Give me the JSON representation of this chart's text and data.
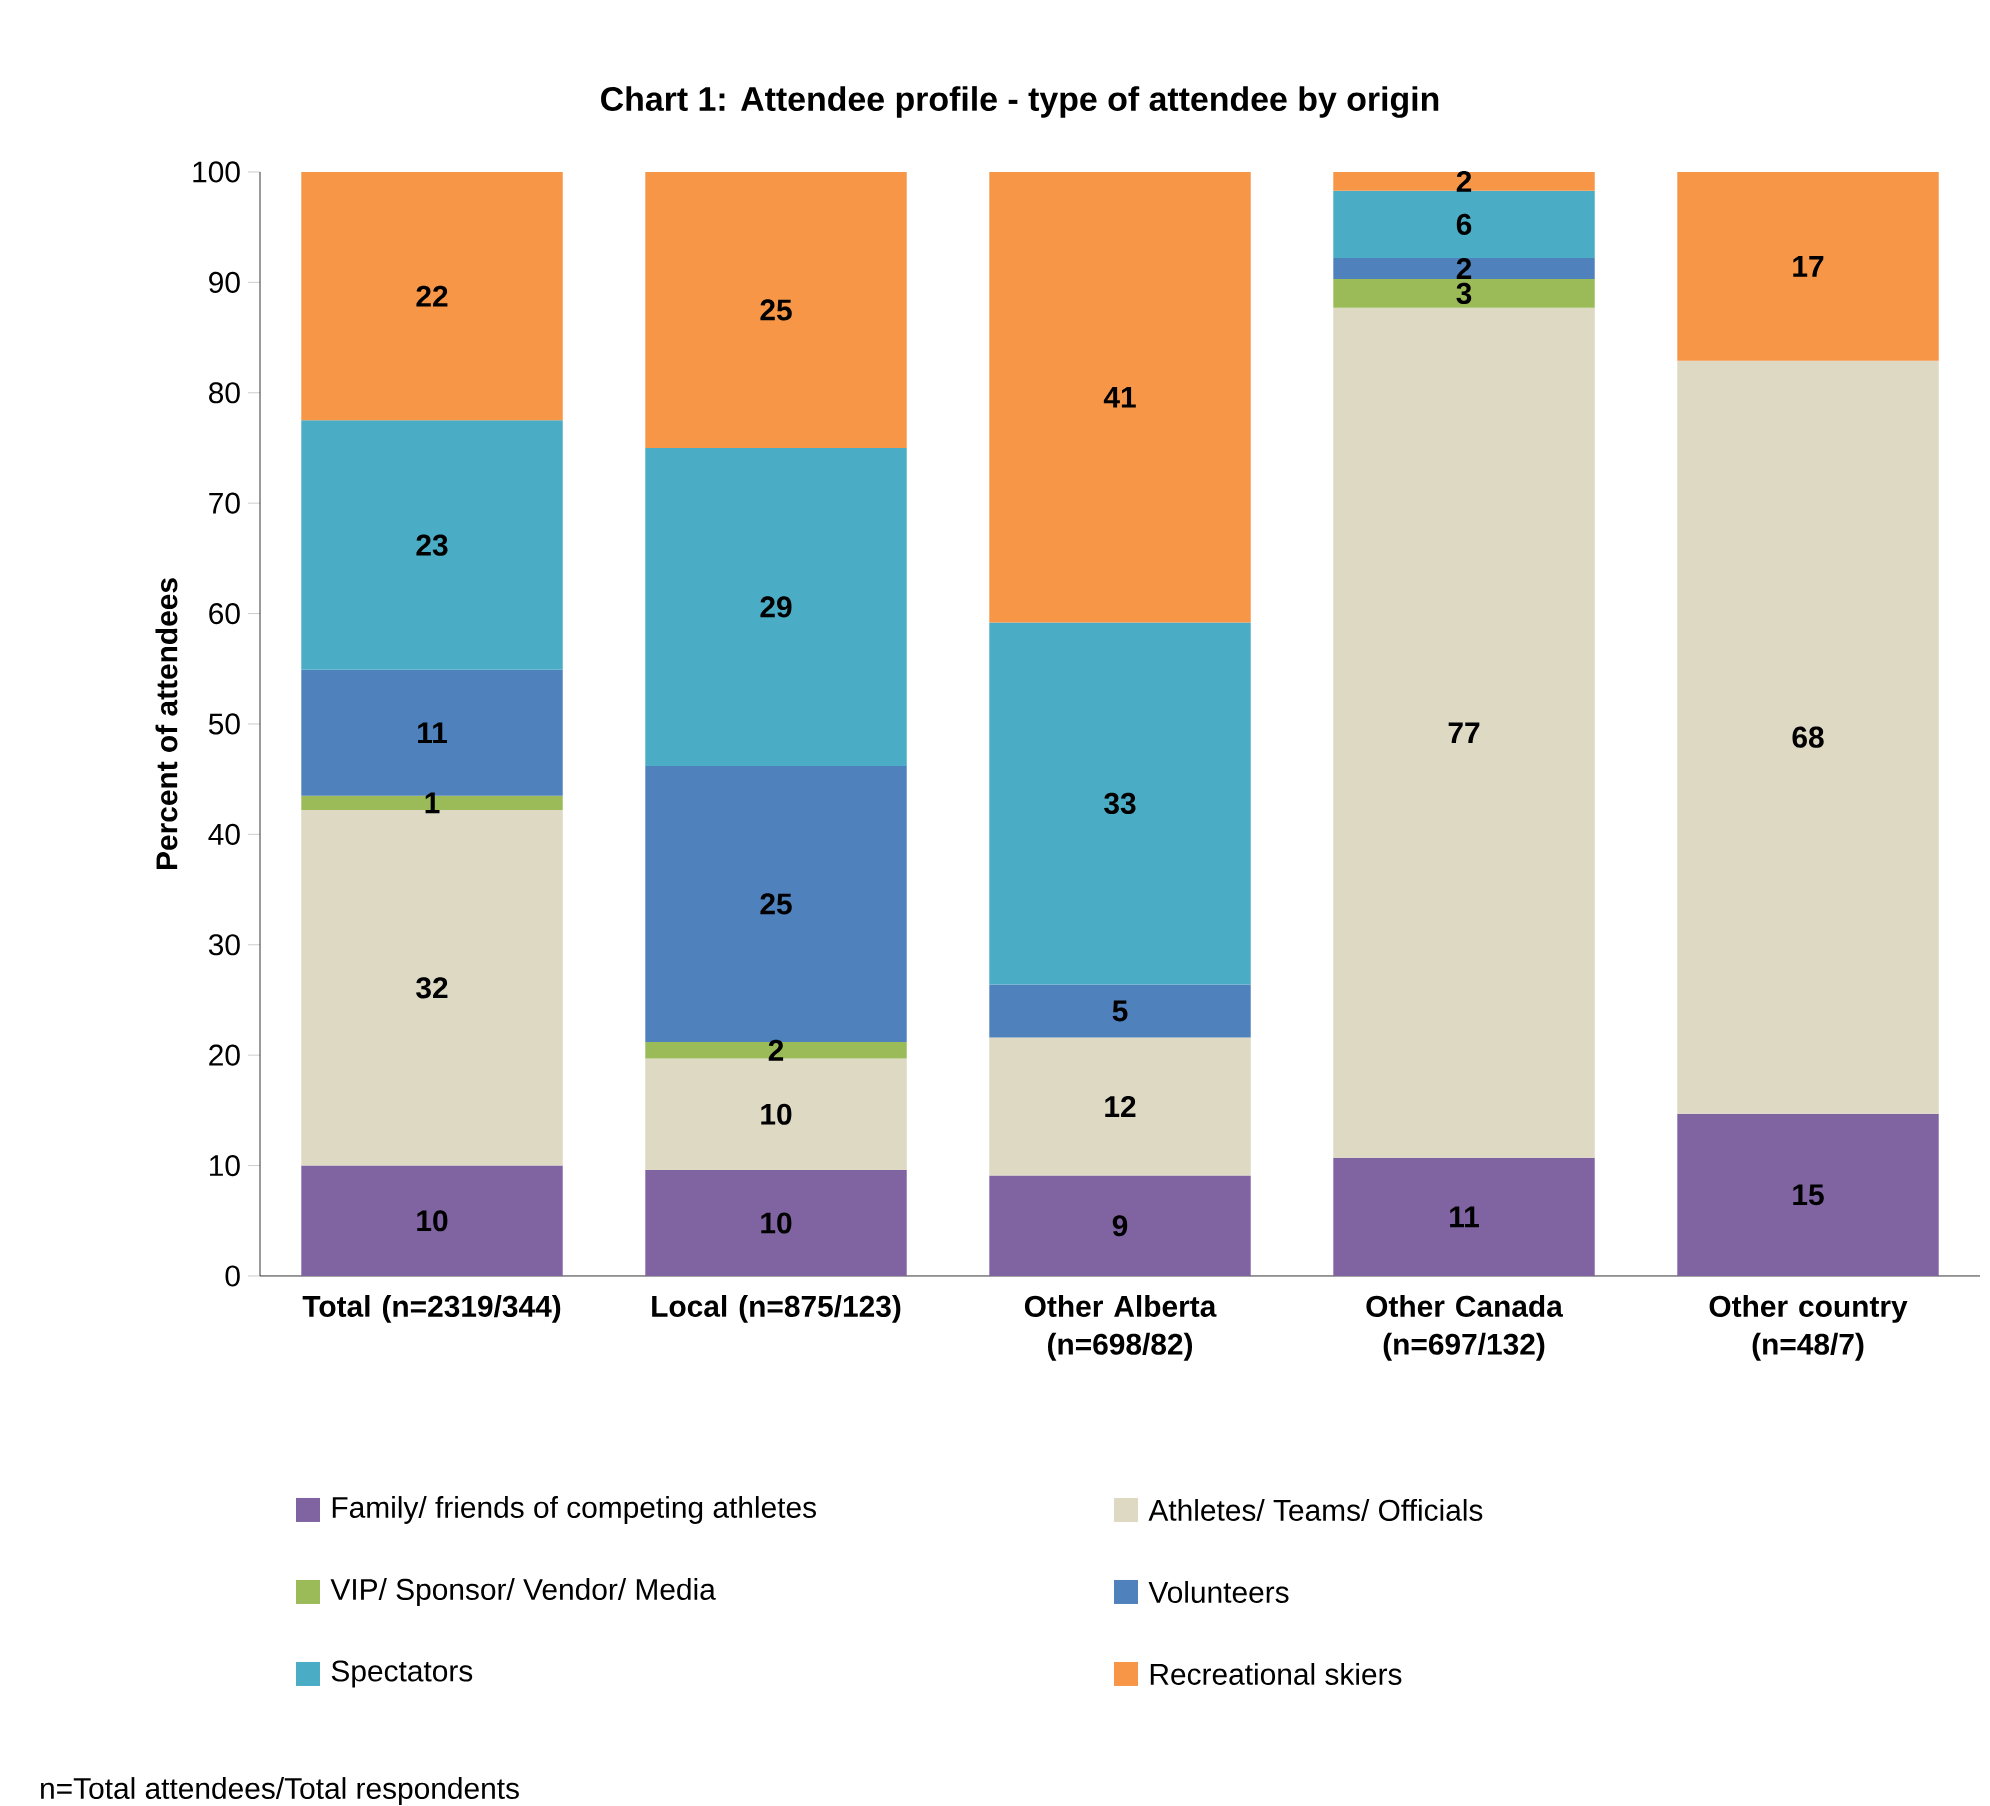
{
  "chart_data": {
    "type": "bar",
    "stacked": true,
    "title": "Chart 1: Attendee profile - type of attendee by origin",
    "ylabel": "Percent of attendees",
    "categories": [
      "Total (n=2319/344)",
      "Local (n=875/123)",
      "Other Alberta (n=698/82)",
      "Other Canada (n=697/132)",
      "Other country (n=48/7)"
    ],
    "series": [
      {
        "name": "Family/ friends of competing athletes",
        "color": "#8064a2",
        "values": [
          10.0,
          9.6,
          9.1,
          10.7,
          14.7
        ],
        "value_labels": [
          "10",
          "10",
          "9",
          "11",
          "15"
        ]
      },
      {
        "name": "Athletes/ Teams/ Officials",
        "color": "#ddd9c3",
        "values": [
          32.2,
          10.1,
          12.5,
          77.0,
          68.2
        ],
        "value_labels": [
          "32",
          "10",
          "12",
          "77",
          "68"
        ]
      },
      {
        "name": "VIP/ Sponsor/ Vendor/ Media",
        "color": "#9bbb59",
        "values": [
          1.3,
          1.5,
          null,
          2.6,
          null
        ],
        "value_labels": [
          "1",
          "2",
          null,
          "3",
          null
        ]
      },
      {
        "name": "Volunteers",
        "color": "#4f81bd",
        "values": [
          11.4,
          25.0,
          4.8,
          1.9,
          null
        ],
        "value_labels": [
          "11",
          "25",
          "5",
          "2",
          null
        ]
      },
      {
        "name": "Spectators",
        "color": "#4bacc6",
        "values": [
          22.6,
          28.8,
          32.8,
          6.1,
          null
        ],
        "value_labels": [
          "23",
          "29",
          "33",
          "6",
          null
        ]
      },
      {
        "name": "Recreational skiers",
        "color": "#f79646",
        "values": [
          22.5,
          25.0,
          40.8,
          1.7,
          17.1
        ],
        "value_labels": [
          "22",
          "25",
          "41",
          "2",
          "17"
        ]
      }
    ],
    "ylim": [
      0,
      100
    ],
    "yticks": [
      0,
      10,
      20,
      30,
      40,
      50,
      60,
      70,
      80,
      90,
      100
    ],
    "grid": false,
    "legend": "bottom",
    "annotations": [
      "n=Total attendees/Total respondents"
    ]
  }
}
